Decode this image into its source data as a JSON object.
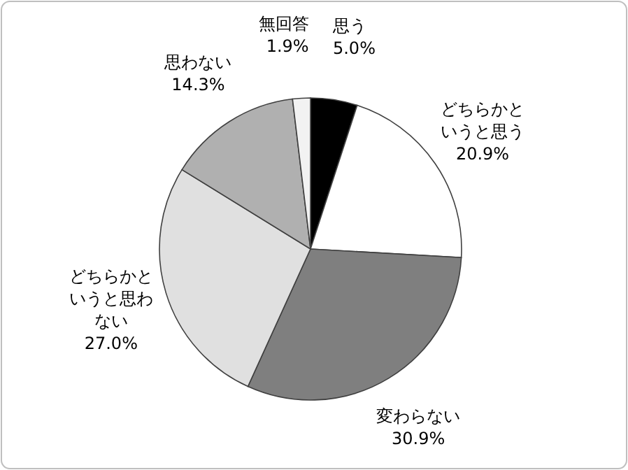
{
  "chart_data": {
    "type": "pie",
    "categories": [
      "思う",
      "どちらかというと思う",
      "変わらない",
      "どちらかというと思わない",
      "思わない",
      "無回答"
    ],
    "values": [
      5.0,
      20.9,
      30.9,
      27.0,
      14.3,
      1.9
    ],
    "value_labels": [
      "5.0%",
      "20.9%",
      "30.9%",
      "27.0%",
      "14.3%",
      "1.9%"
    ],
    "colors": [
      "#000000",
      "#ffffff",
      "#7f7f7f",
      "#e0e0e0",
      "#b0b0b0",
      "#f2f2f2"
    ]
  }
}
